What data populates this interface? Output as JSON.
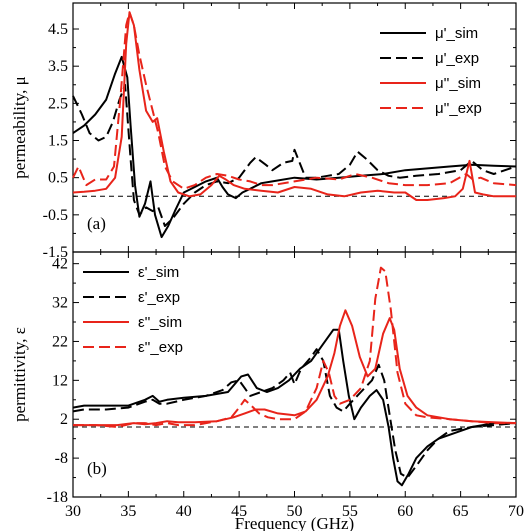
{
  "chart_data": [
    {
      "type": "line",
      "panel_label": "(a)",
      "ylabel": "permeability, μ",
      "xlabel": "",
      "xlim": [
        30,
        70
      ],
      "ylim": [
        -1.5,
        5.2
      ],
      "yticks": [
        "4.5",
        "3.5",
        "2.5",
        "1.5",
        "0.5",
        "-0.5",
        "-1.5"
      ],
      "xticks": [],
      "reference_line": 0,
      "legend_position": "top-right",
      "colors": {
        "sim_real": "#000000",
        "exp_real": "#000000",
        "sim_imag": "#e8241a",
        "exp_imag": "#e8241a"
      },
      "series": [
        {
          "name": "μ'_sim",
          "color": "#000000",
          "dash": "solid",
          "x": [
            30,
            31,
            32,
            33,
            33.8,
            34.4,
            34.9,
            35.2,
            35.6,
            36,
            36.5,
            37,
            37.4,
            38,
            38.6,
            39.2,
            40,
            41,
            42,
            43,
            43.5,
            44,
            44.7,
            45.3,
            46,
            47,
            48,
            50,
            52,
            54,
            56,
            58,
            60,
            62,
            64,
            66,
            68,
            70
          ],
          "y": [
            1.7,
            1.9,
            2.2,
            2.6,
            3.3,
            3.75,
            3.2,
            1.9,
            0.3,
            -0.55,
            -0.2,
            0.4,
            -0.5,
            -1.1,
            -0.8,
            -0.4,
            0.1,
            0.25,
            0.4,
            0.5,
            0.25,
            0.05,
            -0.05,
            0.1,
            0.2,
            0.35,
            0.4,
            0.5,
            0.45,
            0.5,
            0.55,
            0.6,
            0.7,
            0.75,
            0.8,
            0.85,
            0.82,
            0.8
          ]
        },
        {
          "name": "μ'_exp",
          "color": "#000000",
          "dash": "long",
          "x": [
            30,
            30.8,
            31.5,
            32.3,
            33,
            33.6,
            34.2,
            34.7,
            35.2,
            35.5,
            36,
            36.6,
            37.2,
            37.7,
            38.3,
            39,
            40,
            41,
            42,
            43,
            44,
            45,
            46,
            46.5,
            47.4,
            48,
            49,
            49.8,
            50,
            51,
            52,
            53,
            54,
            55,
            55.7,
            56.5,
            57.5,
            58.5,
            59.5,
            61,
            63,
            65,
            66,
            67,
            68,
            70
          ],
          "y": [
            2.7,
            2.2,
            1.7,
            1.5,
            1.6,
            2.0,
            2.6,
            3.0,
            1.0,
            -0.1,
            -0.5,
            -0.3,
            -0.4,
            -0.3,
            -0.8,
            -0.6,
            -0.2,
            0.1,
            0.3,
            0.4,
            0.35,
            0.5,
            0.9,
            1.05,
            0.85,
            0.7,
            0.9,
            0.95,
            1.25,
            0.5,
            0.5,
            0.55,
            0.6,
            0.85,
            1.2,
            1.0,
            0.7,
            0.55,
            0.5,
            0.55,
            0.6,
            0.7,
            0.95,
            0.7,
            0.6,
            0.8
          ]
        },
        {
          "name": "μ''_sim",
          "color": "#e8241a",
          "dash": "solid",
          "x": [
            30,
            31,
            32,
            33,
            33.8,
            34.4,
            34.8,
            35.1,
            35.5,
            36,
            36.6,
            37.2,
            37.6,
            38.2,
            38.8,
            39.5,
            40.5,
            41.5,
            42.5,
            43.2,
            43.8,
            44.5,
            45.5,
            47,
            48.5,
            50,
            51.5,
            53,
            54.5,
            56,
            57.5,
            59,
            60,
            61,
            62,
            63.5,
            64.5,
            65.2,
            65.8,
            66.3,
            67,
            68,
            70
          ],
          "y": [
            0.1,
            0.12,
            0.15,
            0.2,
            0.5,
            1.6,
            4.1,
            4.95,
            4.6,
            3.4,
            2.3,
            2.0,
            2.1,
            1.2,
            0.4,
            0.1,
            0.0,
            0.05,
            0.3,
            0.55,
            0.45,
            0.3,
            0.2,
            0.15,
            0.1,
            0.25,
            0.2,
            0.05,
            0.0,
            0.1,
            0.15,
            0.1,
            0.1,
            -0.1,
            -0.1,
            -0.05,
            0.0,
            0.2,
            0.95,
            0.1,
            0.05,
            0.0,
            0.0
          ]
        },
        {
          "name": "μ''_exp",
          "color": "#e8241a",
          "dash": "long",
          "x": [
            30,
            30.5,
            31.2,
            32,
            33,
            33.7,
            34.3,
            34.8,
            35.1,
            35.5,
            36,
            36.6,
            37.2,
            37.7,
            38.3,
            39,
            40,
            41,
            42,
            43,
            44,
            45,
            46,
            47,
            48,
            50,
            52,
            54,
            55.5,
            57,
            58.5,
            60,
            62,
            64,
            65.5,
            66.1,
            66.8,
            68,
            70
          ],
          "y": [
            0.5,
            0.8,
            0.3,
            0.45,
            0.45,
            0.8,
            2.7,
            4.6,
            4.95,
            4.6,
            3.8,
            3.0,
            2.3,
            1.7,
            0.8,
            0.4,
            0.2,
            0.3,
            0.5,
            0.6,
            0.55,
            0.45,
            0.4,
            0.3,
            0.3,
            0.4,
            0.5,
            0.45,
            0.6,
            0.5,
            0.35,
            0.3,
            0.3,
            0.35,
            0.6,
            0.45,
            0.5,
            0.35,
            0.3
          ]
        }
      ]
    },
    {
      "type": "line",
      "panel_label": "(b)",
      "ylabel": "permittivity, ε",
      "xlabel": "Frequency (GHz)",
      "xlim": [
        30,
        70
      ],
      "ylim": [
        -18,
        45
      ],
      "yticks": [
        "42",
        "32",
        "22",
        "12",
        "2",
        "-8",
        "-18"
      ],
      "xticks": [
        "30",
        "35",
        "40",
        "45",
        "50",
        "55",
        "60",
        "65",
        "70"
      ],
      "reference_line": 0,
      "legend_position": "top-left",
      "colors": {
        "sim_real": "#000000",
        "exp_real": "#000000",
        "sim_imag": "#e8241a",
        "exp_imag": "#e8241a"
      },
      "series": [
        {
          "name": "ε'_sim",
          "color": "#000000",
          "dash": "solid",
          "x": [
            30,
            31,
            33,
            35,
            36.5,
            37.2,
            37.8,
            38.5,
            40,
            42,
            44,
            45.2,
            45.8,
            46.6,
            47.5,
            48.5,
            49.5,
            50.5,
            51.5,
            52.5,
            53.5,
            54,
            54.4,
            54.9,
            55.4,
            56,
            56.8,
            57.4,
            58,
            58.5,
            58.9,
            59.3,
            59.7,
            60.3,
            61,
            62,
            63,
            64,
            65,
            66,
            67,
            68,
            70
          ],
          "y": [
            5,
            5.5,
            5.5,
            5.5,
            7,
            8,
            6.5,
            7,
            7.5,
            8,
            9,
            13,
            13.5,
            10,
            9,
            10,
            12,
            15,
            17,
            21,
            25,
            25,
            17,
            8,
            2,
            5,
            8,
            9.5,
            7,
            0,
            -8,
            -14,
            -15,
            -12,
            -8,
            -5,
            -3,
            -2,
            -1,
            0,
            0.5,
            1,
            1
          ]
        },
        {
          "name": "ε'_exp",
          "color": "#000000",
          "dash": "long",
          "x": [
            30,
            31,
            33,
            35,
            36.5,
            37.2,
            37.8,
            38.5,
            40,
            42,
            43.5,
            44.3,
            45,
            45.5,
            46,
            47,
            48,
            49,
            49.6,
            50,
            50.6,
            51.5,
            52,
            52.6,
            53.2,
            53.8,
            54.4,
            55,
            56,
            57,
            57.6,
            58.1,
            58.6,
            59.1,
            59.6,
            60.2,
            61,
            62,
            63,
            64,
            66,
            68,
            70
          ],
          "y": [
            4,
            4.5,
            4.5,
            5,
            6.5,
            7,
            6,
            6,
            7,
            8,
            9.5,
            11.5,
            12,
            10,
            8,
            9,
            10,
            12,
            14,
            11,
            15,
            18,
            20,
            17,
            8,
            5,
            4,
            6,
            9,
            12,
            16,
            12,
            3,
            -6,
            -12,
            -13,
            -10,
            -6,
            -3,
            -1,
            0,
            0.5,
            1
          ]
        },
        {
          "name": "ε''_sim",
          "color": "#e8241a",
          "dash": "solid",
          "x": [
            30,
            32,
            34,
            35.5,
            36.5,
            37.5,
            38.5,
            39.5,
            41,
            43,
            44.5,
            45.5,
            46.5,
            47.3,
            48.5,
            50,
            51,
            52,
            53,
            53.6,
            54.1,
            54.6,
            55.2,
            55.9,
            56.6,
            57.3,
            58,
            58.6,
            59,
            59.5,
            60.2,
            61,
            62,
            64,
            66,
            68,
            70
          ],
          "y": [
            0.5,
            0.5,
            0.5,
            1,
            0.7,
            1,
            1.5,
            1.2,
            1.2,
            1.5,
            2.5,
            3.5,
            4.5,
            4.5,
            3.5,
            3,
            4,
            7,
            13,
            19,
            26,
            30,
            26,
            18,
            13,
            15,
            24,
            28,
            25,
            15,
            8,
            5,
            3,
            2,
            1.5,
            1.2,
            1
          ]
        },
        {
          "name": "ε''_exp",
          "color": "#e8241a",
          "dash": "long",
          "x": [
            30,
            32,
            34,
            35.5,
            36.5,
            37.5,
            38.5,
            39.5,
            41,
            43,
            44.3,
            45,
            45.5,
            46.1,
            46.8,
            47.6,
            48.5,
            50,
            51,
            52,
            52.6,
            53.1,
            53.6,
            54.1,
            55,
            56,
            56.8,
            57.3,
            57.8,
            58.2,
            58.7,
            59.3,
            60,
            61,
            62,
            64,
            66,
            68,
            70
          ],
          "y": [
            0.5,
            0.5,
            0,
            1,
            1,
            0.5,
            1,
            0.5,
            0.5,
            1.5,
            2.5,
            5,
            7,
            5.5,
            3.5,
            2.5,
            2,
            2,
            4,
            10,
            17,
            14,
            8,
            6,
            7,
            10,
            17,
            33,
            41,
            40,
            30,
            14,
            6,
            3,
            2.5,
            2,
            1.5,
            1,
            1
          ]
        }
      ]
    }
  ]
}
